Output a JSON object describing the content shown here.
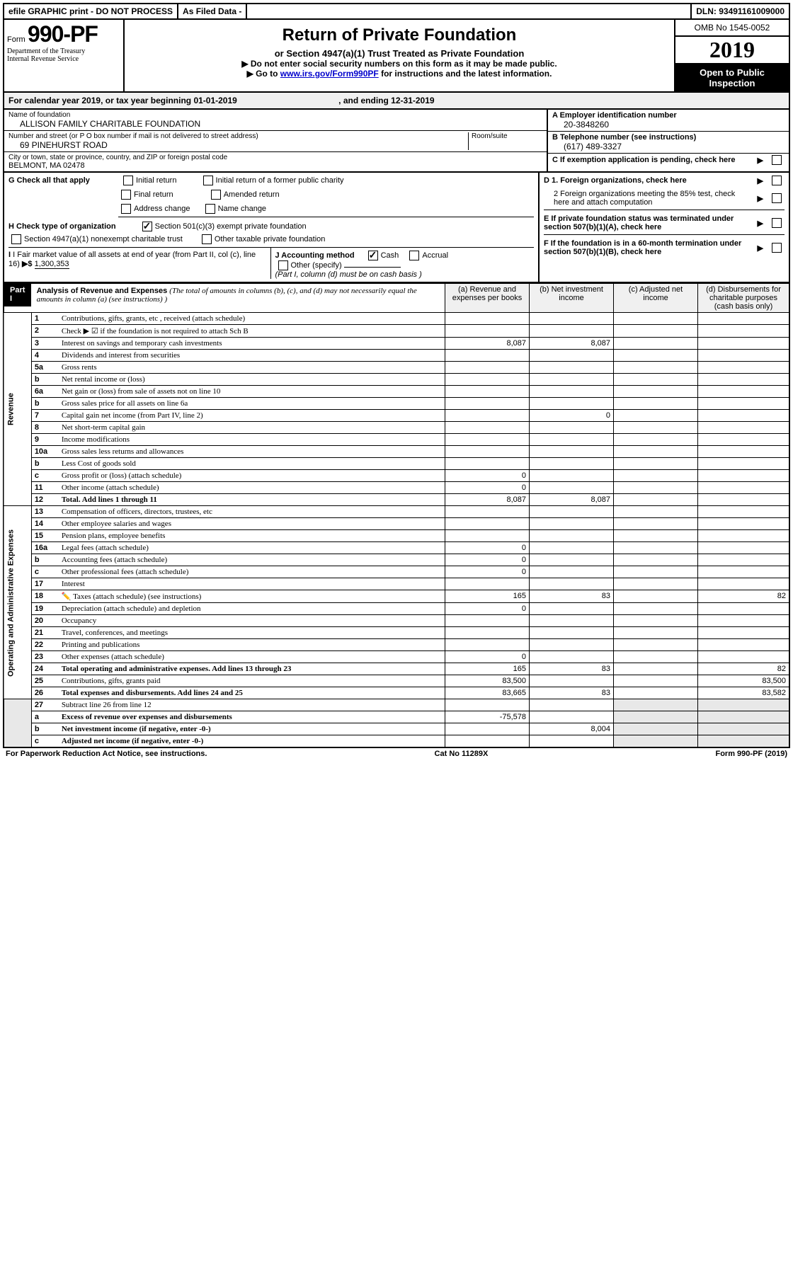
{
  "topbar": {
    "efile": "efile GRAPHIC print - DO NOT PROCESS",
    "asfiled": "As Filed Data -",
    "dln_label": "DLN:",
    "dln": "93491161009000"
  },
  "header": {
    "form_prefix": "Form",
    "form_no": "990-PF",
    "dept1": "Department of the Treasury",
    "dept2": "Internal Revenue Service",
    "title": "Return of Private Foundation",
    "subtitle": "or Section 4947(a)(1) Trust Treated as Private Foundation",
    "note1": "▶ Do not enter social security numbers on this form as it may be made public.",
    "note2_pre": "▶ Go to ",
    "note2_link": "www.irs.gov/Form990PF",
    "note2_post": " for instructions and the latest information.",
    "omb": "OMB No 1545-0052",
    "year": "2019",
    "open": "Open to Public Inspection"
  },
  "cal": {
    "text": "For calendar year 2019, or tax year beginning 01-01-2019",
    "ending": ", and ending 12-31-2019"
  },
  "entity": {
    "name_label": "Name of foundation",
    "name": "ALLISON FAMILY CHARITABLE FOUNDATION",
    "addr_label": "Number and street (or P O  box number if mail is not delivered to street address)",
    "room_label": "Room/suite",
    "addr": "69 PINEHURST ROAD",
    "city_label": "City or town, state or province, country, and ZIP or foreign postal code",
    "city": "BELMONT, MA  02478",
    "a_label": "A Employer identification number",
    "a_val": "20-3848260",
    "b_label": "B Telephone number (see instructions)",
    "b_val": "(617) 489-3327",
    "c_label": "C If exemption application is pending, check here"
  },
  "g": {
    "label": "G Check all that apply",
    "opts": [
      "Initial return",
      "Initial return of a former public charity",
      "Final return",
      "Amended return",
      "Address change",
      "Name change"
    ]
  },
  "h": {
    "label": "H Check type of organization",
    "opt1": "Section 501(c)(3) exempt private foundation",
    "opt2": "Section 4947(a)(1) nonexempt charitable trust",
    "opt3": "Other taxable private foundation"
  },
  "d": {
    "d1": "D 1. Foreign organizations, check here",
    "d2": "2  Foreign organizations meeting the 85% test, check here and attach computation",
    "e": "E  If private foundation status was terminated under section 507(b)(1)(A), check here",
    "f": "F  If the foundation is in a 60-month termination under section 507(b)(1)(B), check here"
  },
  "i": {
    "label": "I Fair market value of all assets at end of year (from Part II, col  (c), line 16)",
    "arrow": "▶$",
    "val": "1,300,353"
  },
  "j": {
    "label": "J Accounting method",
    "cash": "Cash",
    "accrual": "Accrual",
    "other": "Other (specify)",
    "note": "(Part I, column (d) must be on cash basis )"
  },
  "part1": {
    "badge": "Part I",
    "title": "Analysis of Revenue and Expenses",
    "desc": "(The total of amounts in columns (b), (c), and (d) may not necessarily equal the amounts in column (a) (see instructions) )",
    "col_a": "(a)  Revenue and expenses per books",
    "col_b": "(b)  Net investment income",
    "col_c": "(c)  Adjusted net income",
    "col_d": "(d)  Disbursements for charitable purposes (cash basis only)"
  },
  "sections": {
    "revenue": "Revenue",
    "expenses": "Operating and Administrative Expenses"
  },
  "lines": [
    {
      "n": "1",
      "t": "Contributions, gifts, grants, etc , received (attach schedule)"
    },
    {
      "n": "2",
      "t": "Check ▶ ☑ if the foundation is not required to attach Sch  B"
    },
    {
      "n": "3",
      "t": "Interest on savings and temporary cash investments",
      "a": "8,087",
      "b": "8,087"
    },
    {
      "n": "4",
      "t": "Dividends and interest from securities"
    },
    {
      "n": "5a",
      "t": "Gross rents"
    },
    {
      "n": "b",
      "t": "Net rental income or (loss)"
    },
    {
      "n": "6a",
      "t": "Net gain or (loss) from sale of assets not on line 10"
    },
    {
      "n": "b",
      "t": "Gross sales price for all assets on line 6a"
    },
    {
      "n": "7",
      "t": "Capital gain net income (from Part IV, line 2)",
      "b": "0"
    },
    {
      "n": "8",
      "t": "Net short-term capital gain"
    },
    {
      "n": "9",
      "t": "Income modifications"
    },
    {
      "n": "10a",
      "t": "Gross sales less returns and allowances"
    },
    {
      "n": "b",
      "t": "Less  Cost of goods sold"
    },
    {
      "n": "c",
      "t": "Gross profit or (loss) (attach schedule)",
      "a": "0"
    },
    {
      "n": "11",
      "t": "Other income (attach schedule)",
      "a": "0"
    },
    {
      "n": "12",
      "t": "Total. Add lines 1 through 11",
      "a": "8,087",
      "b": "8,087",
      "bold": true
    }
  ],
  "exp_lines": [
    {
      "n": "13",
      "t": "Compensation of officers, directors, trustees, etc"
    },
    {
      "n": "14",
      "t": "Other employee salaries and wages"
    },
    {
      "n": "15",
      "t": "Pension plans, employee benefits"
    },
    {
      "n": "16a",
      "t": "Legal fees (attach schedule)",
      "a": "0"
    },
    {
      "n": "b",
      "t": "Accounting fees (attach schedule)",
      "a": "0"
    },
    {
      "n": "c",
      "t": "Other professional fees (attach schedule)",
      "a": "0"
    },
    {
      "n": "17",
      "t": "Interest"
    },
    {
      "n": "18",
      "t": "Taxes (attach schedule) (see instructions)",
      "icon": "✏️",
      "a": "165",
      "b": "83",
      "d": "82"
    },
    {
      "n": "19",
      "t": "Depreciation (attach schedule) and depletion",
      "a": "0"
    },
    {
      "n": "20",
      "t": "Occupancy"
    },
    {
      "n": "21",
      "t": "Travel, conferences, and meetings"
    },
    {
      "n": "22",
      "t": "Printing and publications"
    },
    {
      "n": "23",
      "t": "Other expenses (attach schedule)",
      "a": "0"
    },
    {
      "n": "24",
      "t": "Total operating and administrative expenses. Add lines 13 through 23",
      "a": "165",
      "b": "83",
      "d": "82",
      "bold": true
    },
    {
      "n": "25",
      "t": "Contributions, gifts, grants paid",
      "a": "83,500",
      "d": "83,500"
    },
    {
      "n": "26",
      "t": "Total expenses and disbursements. Add lines 24 and 25",
      "a": "83,665",
      "b": "83",
      "d": "83,582",
      "bold": true
    }
  ],
  "bottom_lines": [
    {
      "n": "27",
      "t": "Subtract line 26 from line 12"
    },
    {
      "n": "a",
      "t": "Excess of revenue over expenses and disbursements",
      "a": "-75,578",
      "bold": true
    },
    {
      "n": "b",
      "t": "Net investment income (if negative, enter -0-)",
      "b": "8,004",
      "bold": true
    },
    {
      "n": "c",
      "t": "Adjusted net income (if negative, enter -0-)",
      "bold": true
    }
  ],
  "footer": {
    "left": "For Paperwork Reduction Act Notice, see instructions.",
    "mid": "Cat  No  11289X",
    "right": "Form 990-PF (2019)"
  }
}
